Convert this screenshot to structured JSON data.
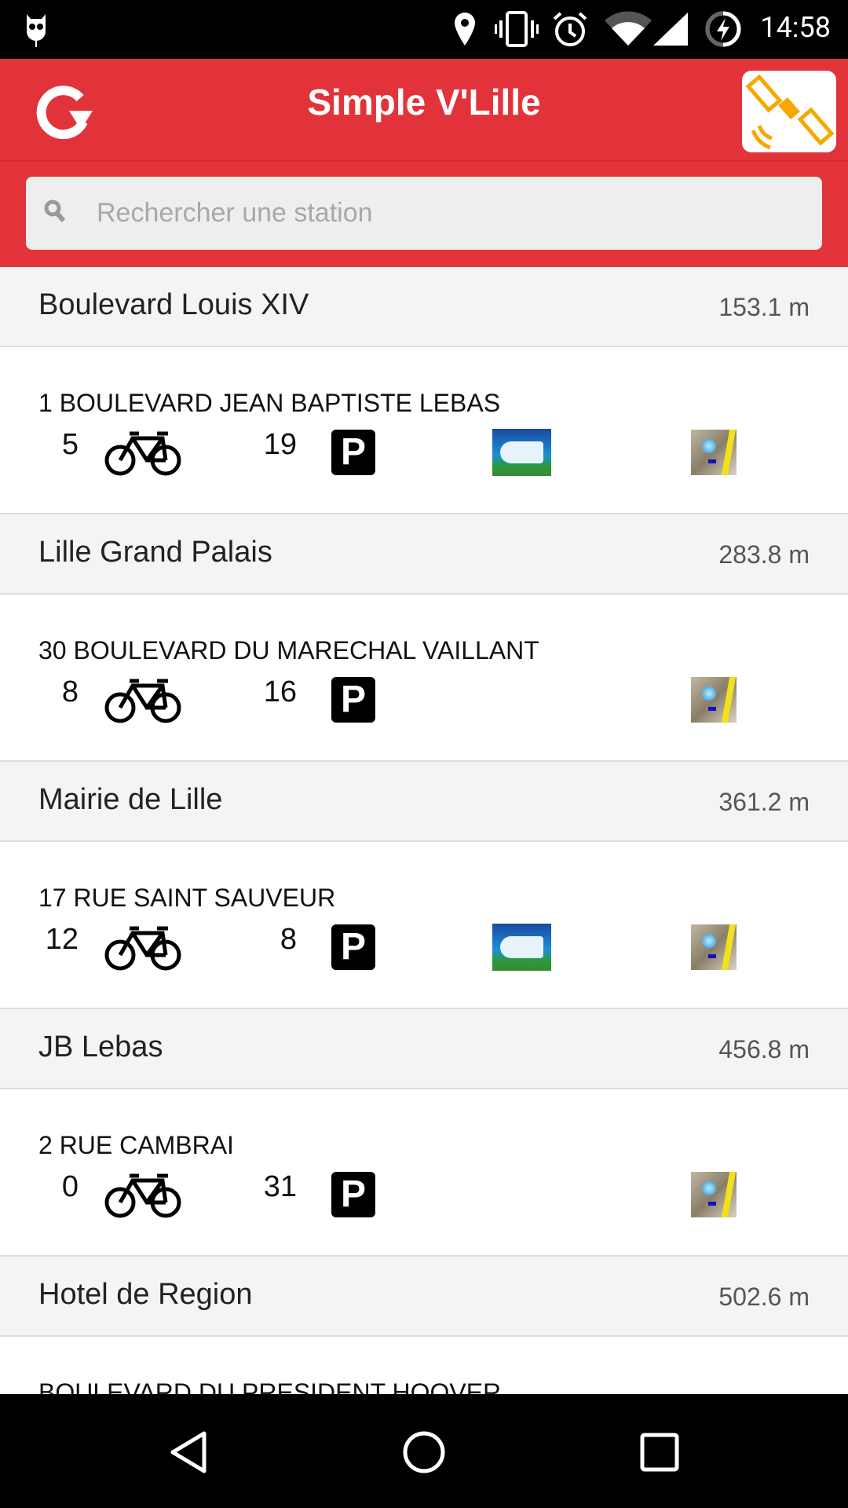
{
  "status_bar": {
    "time": "14:58",
    "icons": [
      "cyanogen-icon",
      "location-icon",
      "vibrate-icon",
      "alarm-icon",
      "wifi-icon",
      "signal-icon",
      "battery-charging-icon"
    ]
  },
  "app_bar": {
    "title": "Simple V'Lille",
    "left_icon": "refresh-icon",
    "right_icon": "gps-satellite-icon",
    "color": "#e3333a"
  },
  "search": {
    "placeholder": "Rechercher une station",
    "value": ""
  },
  "stations": [
    {
      "name": "Boulevard Louis XIV",
      "distance": "153.1 m",
      "address": "1 BOULEVARD JEAN BAPTISTE LEBAS",
      "bikes": "5",
      "stands": "19",
      "card_payment": true
    },
    {
      "name": "Lille Grand Palais",
      "distance": "283.8 m",
      "address": "30 BOULEVARD DU MARECHAL VAILLANT",
      "bikes": "8",
      "stands": "16",
      "card_payment": false
    },
    {
      "name": "Mairie de Lille",
      "distance": "361.2 m",
      "address": "17 RUE SAINT SAUVEUR",
      "bikes": "12",
      "stands": "8",
      "card_payment": true
    },
    {
      "name": "JB Lebas",
      "distance": "456.8 m",
      "address": "2 RUE CAMBRAI",
      "bikes": "0",
      "stands": "31",
      "card_payment": false
    },
    {
      "name": "Hotel de Region",
      "distance": "502.6 m",
      "address": "BOULEVARD DU PRESIDENT HOOVER",
      "bikes": "",
      "stands": "",
      "card_payment": false
    }
  ],
  "labels": {
    "parking": "P"
  },
  "nav_bar": {
    "icons": [
      "back-icon",
      "home-icon",
      "recents-icon"
    ]
  }
}
